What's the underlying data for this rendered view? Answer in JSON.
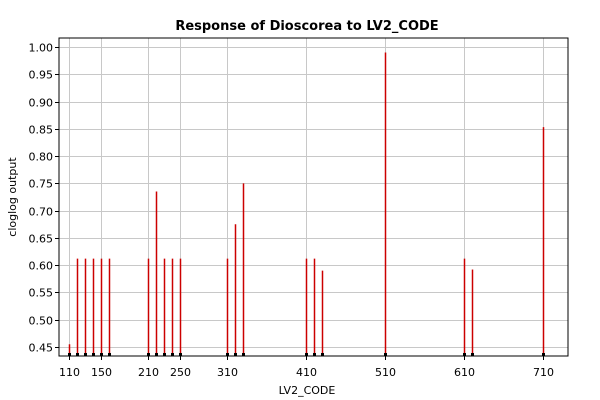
{
  "chart_data": {
    "type": "bar",
    "title": "Response of Dioscorea to LV2_CODE",
    "xlabel": "LV2_CODE",
    "ylabel": "cloglog output",
    "xlim": [
      100,
      720
    ],
    "ylim": [
      0.43,
      1.02
    ],
    "xticks": [
      110,
      150,
      210,
      250,
      310,
      410,
      510,
      610,
      710
    ],
    "yticks": [
      0.45,
      0.5,
      0.55,
      0.6,
      0.65,
      0.7,
      0.75,
      0.8,
      0.85,
      0.9,
      0.95,
      1.0
    ],
    "grid": true,
    "bar_color": "#cc0000",
    "points": [
      {
        "x": 110,
        "y": 0.455
      },
      {
        "x": 120,
        "y": 0.612
      },
      {
        "x": 130,
        "y": 0.612
      },
      {
        "x": 140,
        "y": 0.612
      },
      {
        "x": 150,
        "y": 0.612
      },
      {
        "x": 160,
        "y": 0.612
      },
      {
        "x": 210,
        "y": 0.612
      },
      {
        "x": 220,
        "y": 0.735
      },
      {
        "x": 230,
        "y": 0.612
      },
      {
        "x": 240,
        "y": 0.612
      },
      {
        "x": 250,
        "y": 0.612
      },
      {
        "x": 310,
        "y": 0.612
      },
      {
        "x": 320,
        "y": 0.675
      },
      {
        "x": 330,
        "y": 0.75
      },
      {
        "x": 410,
        "y": 0.612
      },
      {
        "x": 420,
        "y": 0.612
      },
      {
        "x": 430,
        "y": 0.59
      },
      {
        "x": 510,
        "y": 0.99
      },
      {
        "x": 610,
        "y": 0.612
      },
      {
        "x": 620,
        "y": 0.592
      },
      {
        "x": 710,
        "y": 0.853
      }
    ]
  }
}
